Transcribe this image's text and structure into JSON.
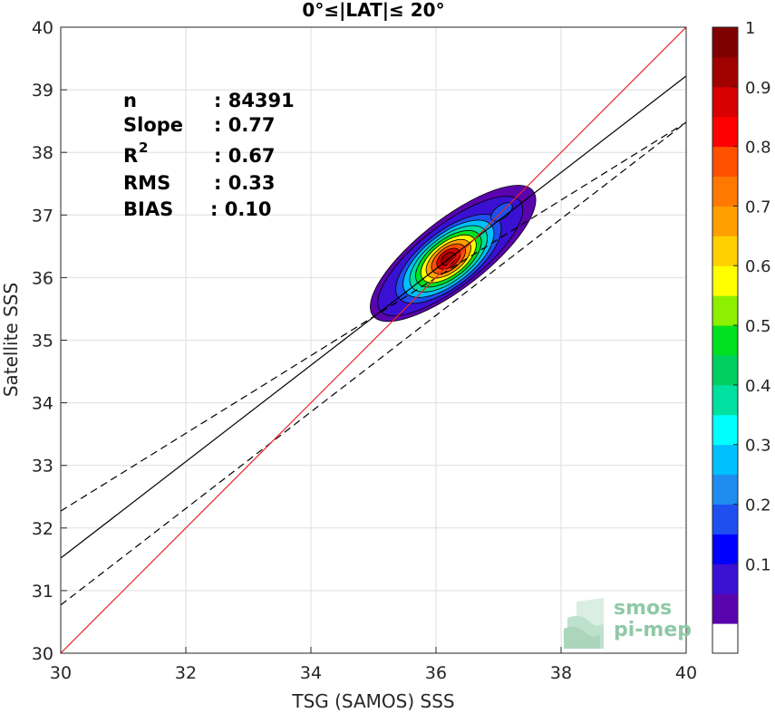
{
  "chart_data": {
    "type": "contour",
    "title": "0°≤|LAT|≤ 20°",
    "xlabel": "TSG (SAMOS) SSS",
    "ylabel": "Satellite SSS",
    "xlim": [
      30,
      40
    ],
    "ylim": [
      30,
      40
    ],
    "xticks": [
      "30",
      "32",
      "34",
      "36",
      "38",
      "40"
    ],
    "yticks": [
      "30",
      "31",
      "32",
      "33",
      "34",
      "35",
      "36",
      "37",
      "38",
      "39",
      "40"
    ],
    "grid": true,
    "stats": [
      {
        "label": "n",
        "sep": ":",
        "value": "84391"
      },
      {
        "label": "Slope",
        "sep": ":",
        "value": "0.77"
      },
      {
        "label": "R",
        "sup": "2",
        "sep": ":",
        "value": "0.67"
      },
      {
        "label": "RMS",
        "sep": ":",
        "value": "0.33"
      },
      {
        "label": "BIAS",
        "sep": ":",
        "value": "0.10"
      }
    ],
    "lines": {
      "identity": {
        "color": "#e8262b",
        "x": [
          30,
          40
        ],
        "y": [
          30,
          40
        ]
      },
      "regression": {
        "color": "#000000",
        "x": [
          30,
          40
        ],
        "y": [
          31.52,
          39.22
        ]
      },
      "upper_bound": {
        "color": "#000000",
        "style": "dashed",
        "x": [
          30,
          40
        ],
        "y": [
          32.27,
          38.48
        ]
      },
      "lower_bound": {
        "color": "#000000",
        "style": "dashed",
        "x": [
          30,
          40
        ],
        "y": [
          30.77,
          38.48
        ]
      }
    },
    "density_peak": {
      "x": 36.2,
      "y": 36.3
    },
    "colorbar": {
      "ticks": [
        "0.1",
        "0.2",
        "0.3",
        "0.4",
        "0.5",
        "0.6",
        "0.7",
        "0.8",
        "0.9",
        "1"
      ],
      "colors": [
        "#ffffff",
        "#5a04ae",
        "#3a10d3",
        "#0000ff",
        "#1e50f0",
        "#1e8cf0",
        "#00c0ff",
        "#00ffff",
        "#00e0a0",
        "#00d060",
        "#00e020",
        "#8cf000",
        "#ffff00",
        "#ffd000",
        "#ffa000",
        "#ff7800",
        "#ff5000",
        "#ff0000",
        "#d80000",
        "#a00000",
        "#800000"
      ]
    }
  },
  "watermark": {
    "line1": "smos",
    "line2": "pi-mep"
  }
}
